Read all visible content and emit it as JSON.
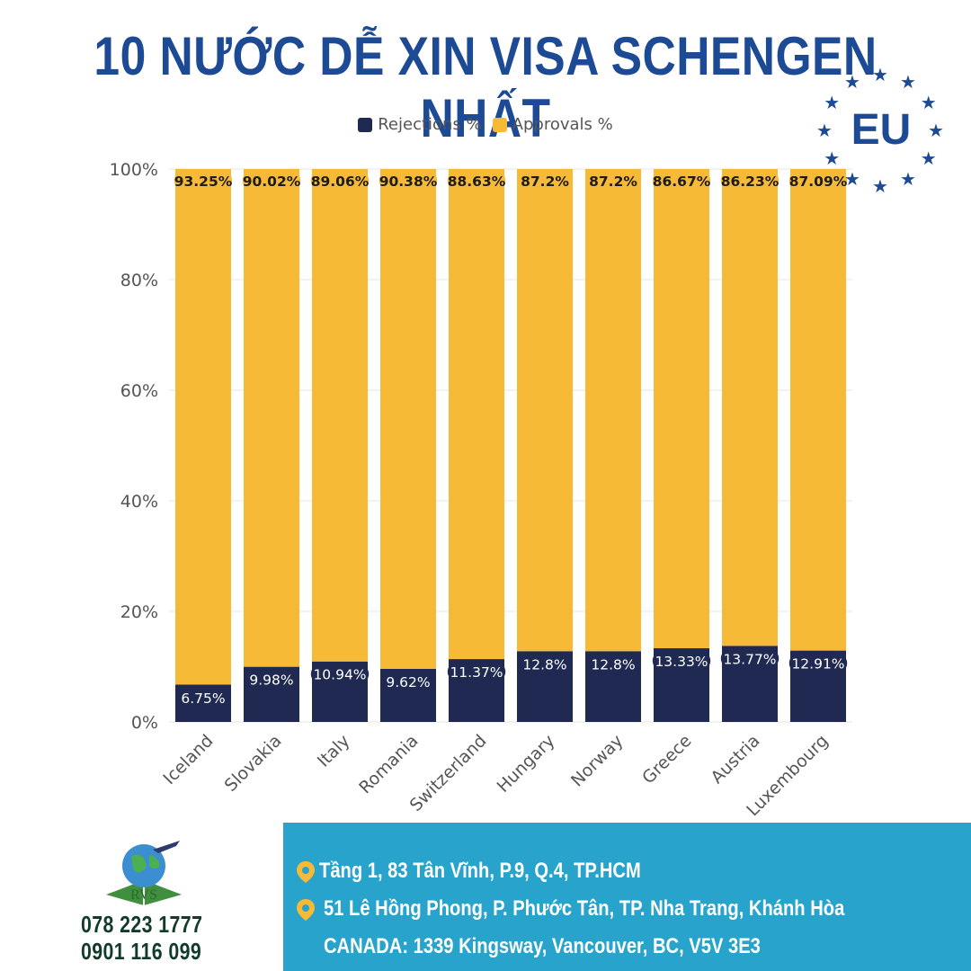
{
  "title": "10 NƯỚC DỄ XIN VISA SCHENGEN NHẤT",
  "eu_badge": {
    "text": "EU",
    "star_icon": "star-icon",
    "color": "#1d4a94"
  },
  "legend": [
    {
      "label": "Rejections %",
      "color": "#1f2951"
    },
    {
      "label": "Approvals %",
      "color": "#f7ba36"
    }
  ],
  "chart_data": {
    "type": "bar",
    "stacked": true,
    "categories": [
      "Iceland",
      "Slovakia",
      "Italy",
      "Romania",
      "Switzerland",
      "Hungary",
      "Norway",
      "Greece",
      "Austria",
      "Luxembourg"
    ],
    "series": [
      {
        "name": "Rejections %",
        "values": [
          6.75,
          9.98,
          10.94,
          9.62,
          11.37,
          12.8,
          12.8,
          13.33,
          13.77,
          12.91
        ],
        "labels": [
          "6.75%",
          "9.98%",
          "10.94%",
          "9.62%",
          "11.37%",
          "12.8%",
          "12.8%",
          "13.33%",
          "13.77%",
          "12.91%"
        ],
        "color": "#1f2951"
      },
      {
        "name": "Approvals %",
        "values": [
          93.25,
          90.02,
          89.06,
          90.38,
          88.63,
          87.2,
          87.2,
          86.67,
          86.23,
          87.09
        ],
        "labels": [
          "93.25%",
          "90.02%",
          "89.06%",
          "90.38%",
          "88.63%",
          "87.2%",
          "87.2%",
          "86.67%",
          "86.23%",
          "87.09%"
        ],
        "color": "#f7ba36"
      }
    ],
    "yticks": [
      "0%",
      "20%",
      "40%",
      "60%",
      "80%",
      "100%"
    ],
    "ylim": [
      0,
      100
    ],
    "grid": true,
    "legend_position": "top"
  },
  "footer": {
    "logo_text": "RVS",
    "logo_icon": "globe-airplane-logo",
    "phones": [
      "078 223 1777",
      "0901 116 099"
    ],
    "addresses": [
      "Tầng 1, 83 Tân Vĩnh, P.9, Q.4, TP.HCM",
      "51 Lê Hồng Phong, P. Phước Tân, TP. Nha Trang, Khánh Hòa",
      "CANADA: 1339 Kingsway, Vancouver, BC, V5V 3E3"
    ],
    "pin_icon": "map-pin-icon",
    "pin_color": "#f7ba36",
    "bg_color": "#27a3cc"
  }
}
